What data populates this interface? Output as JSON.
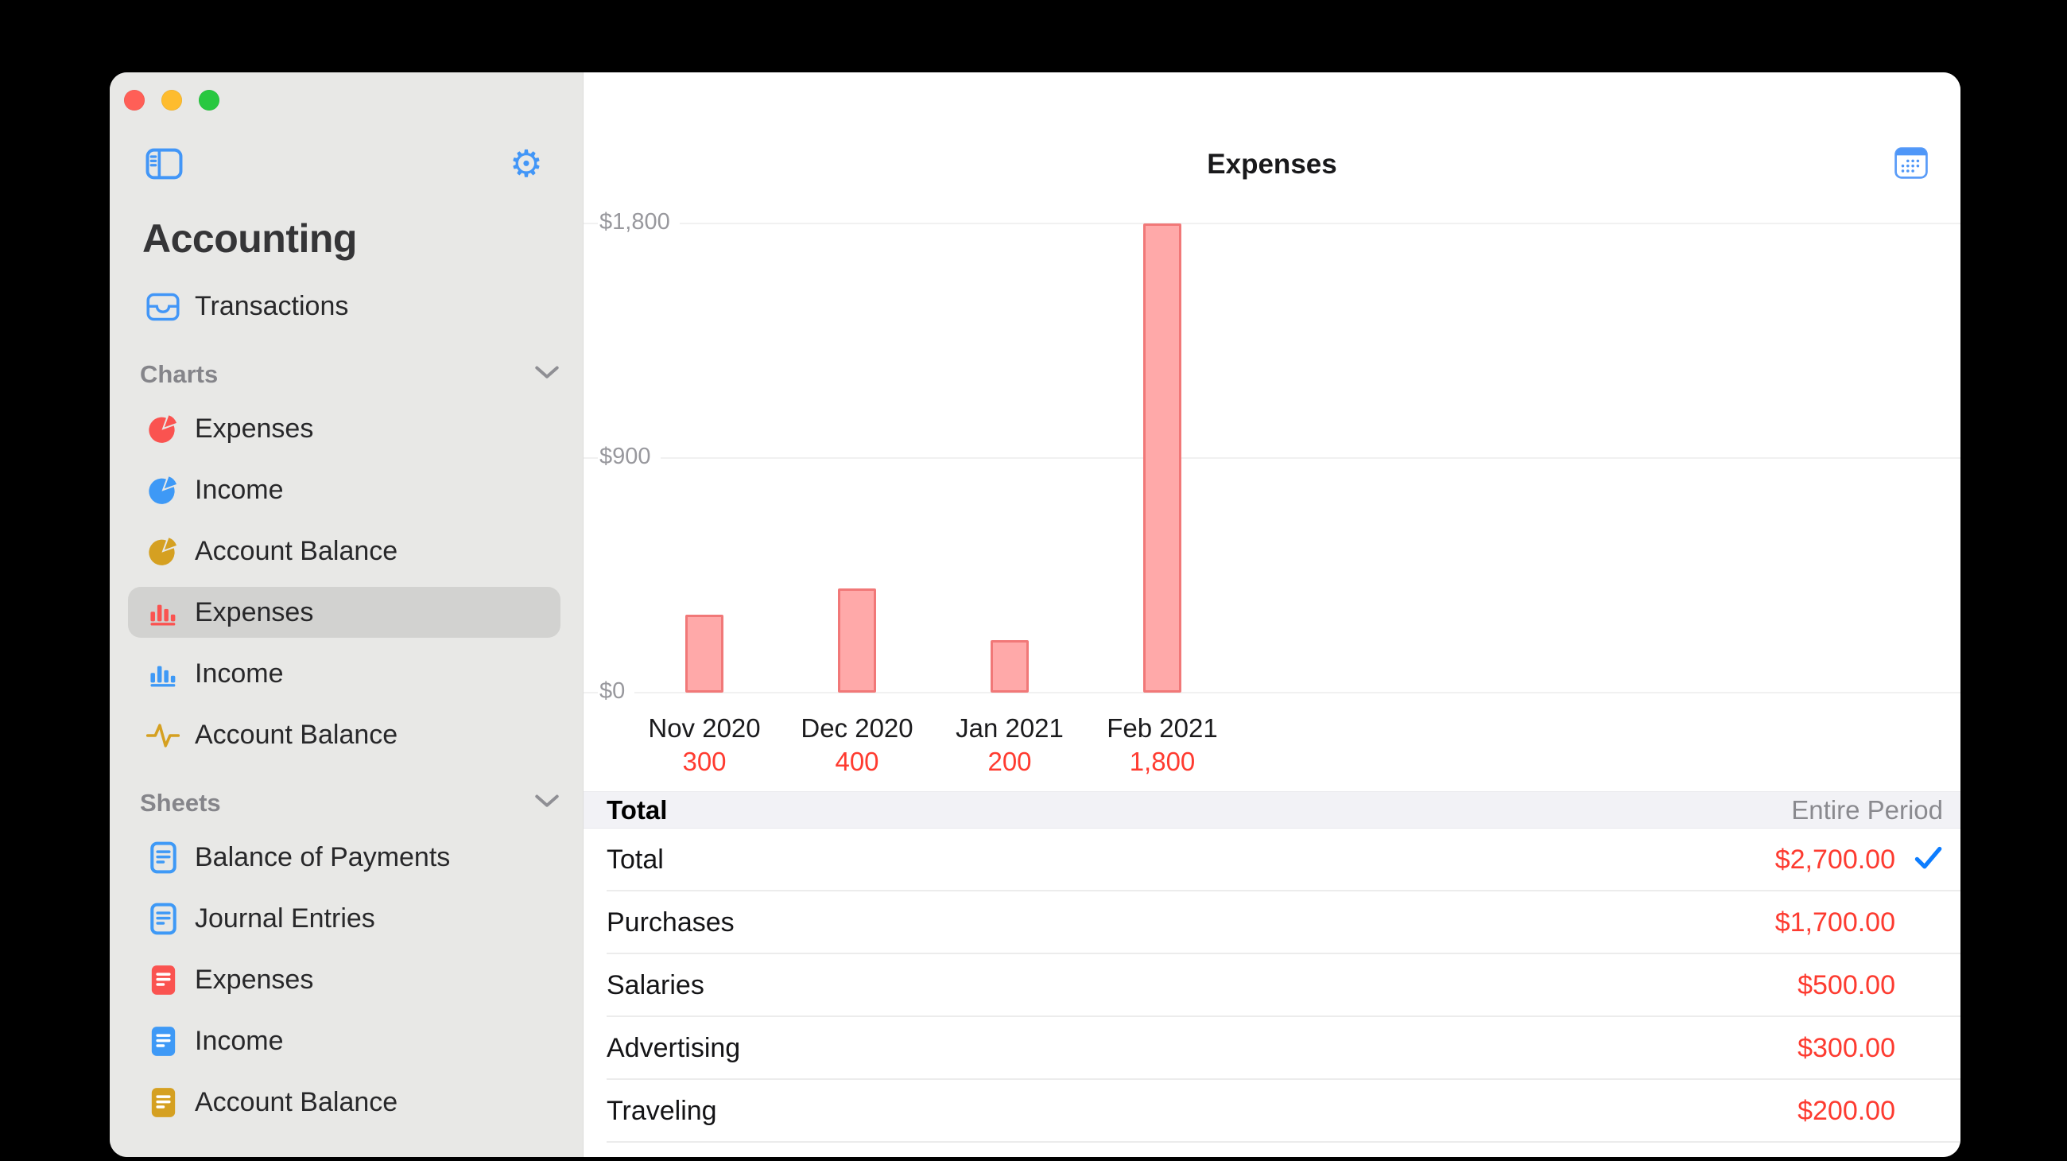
{
  "window": {
    "traffic_lights": [
      {
        "name": "close",
        "color": "#ff5f57"
      },
      {
        "name": "minimize",
        "color": "#febc2e"
      },
      {
        "name": "zoom",
        "color": "#28c840"
      }
    ]
  },
  "sidebar": {
    "title": "Accounting",
    "toolbar": {
      "toggle_icon": "sidebar-toggle",
      "settings_icon": "gear"
    },
    "top_items": [
      {
        "label": "Transactions",
        "icon": "tray",
        "color": "#4296f7"
      }
    ],
    "sections": [
      {
        "label": "Charts",
        "chevron_icon": "chevron-down",
        "items": [
          {
            "label": "Expenses",
            "icon": "pie",
            "color": "#fa5350",
            "selected": false
          },
          {
            "label": "Income",
            "icon": "pie",
            "color": "#3e99f6",
            "selected": false
          },
          {
            "label": "Account Balance",
            "icon": "pie",
            "color": "#d5a021",
            "selected": false
          },
          {
            "label": "Expenses",
            "icon": "bars",
            "color": "#fa5350",
            "selected": true
          },
          {
            "label": "Income",
            "icon": "bars",
            "color": "#3e99f6",
            "selected": false
          },
          {
            "label": "Account Balance",
            "icon": "pulse",
            "color": "#d5a021",
            "selected": false
          }
        ]
      },
      {
        "label": "Sheets",
        "chevron_icon": "chevron-down",
        "items": [
          {
            "label": "Balance of Payments",
            "icon": "doc-outline",
            "color": "#3e99f6",
            "selected": false
          },
          {
            "label": "Journal Entries",
            "icon": "doc-outline",
            "color": "#3e99f6",
            "selected": false
          },
          {
            "label": "Expenses",
            "icon": "doc-fill",
            "color": "#fa5350",
            "selected": false
          },
          {
            "label": "Income",
            "icon": "doc-fill",
            "color": "#3e99f6",
            "selected": false
          },
          {
            "label": "Account Balance",
            "icon": "doc-fill",
            "color": "#d5a021",
            "selected": false
          }
        ]
      }
    ]
  },
  "main": {
    "title": "Expenses",
    "calendar_icon": "calendar",
    "table": {
      "header": {
        "left": "Total",
        "right": "Entire Period"
      },
      "rows": [
        {
          "label": "Total",
          "amount": "$2,700.00",
          "checked": true
        },
        {
          "label": "Purchases",
          "amount": "$1,700.00",
          "checked": false
        },
        {
          "label": "Salaries",
          "amount": "$500.00",
          "checked": false
        },
        {
          "label": "Advertising",
          "amount": "$300.00",
          "checked": false
        },
        {
          "label": "Traveling",
          "amount": "$200.00",
          "checked": false
        }
      ]
    }
  },
  "chart_data": {
    "type": "bar",
    "title": "Expenses",
    "categories": [
      "Nov 2020",
      "Dec 2020",
      "Jan 2021",
      "Feb 2021"
    ],
    "values": [
      300,
      400,
      200,
      1800
    ],
    "value_labels": [
      "300",
      "400",
      "200",
      "1,800"
    ],
    "y_ticks": [
      {
        "label": "$0",
        "value": 0
      },
      {
        "label": "$900",
        "value": 900
      },
      {
        "label": "$1,800",
        "value": 1800
      }
    ],
    "ylim": [
      0,
      1800
    ],
    "xlabel": "",
    "ylabel": "",
    "grid": true,
    "legend": "none",
    "bar_fill": "#ffa9a9",
    "bar_border": "#f17878",
    "value_label_color": "#ff3b30",
    "category_label_color": "#1b1b1d"
  },
  "colors": {
    "accent_blue": "#4296f7",
    "amount_red": "#fd3b30",
    "gold": "#d5a021",
    "sidebar_bg": "#e8e8e6",
    "selected_item_bg": "#d2d2d0",
    "table_header_bg": "#f2f2f6",
    "check_blue": "#0d7dff",
    "gridline": "#f1f1f1"
  }
}
